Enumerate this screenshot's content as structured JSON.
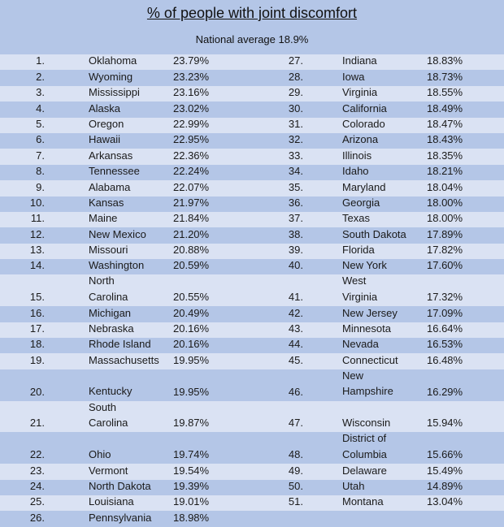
{
  "title": "% of people with joint discomfort",
  "subtitle": "National average 18.9%",
  "colors": {
    "header_bg": "#b4c6e7",
    "row_light": "#dae2f3",
    "row_dark": "#b4c6e7"
  },
  "rows": [
    {
      "left": {
        "rank": "1.",
        "state": "Oklahoma",
        "pct": "23.79%"
      },
      "right": {
        "rank": "27.",
        "state": "Indiana",
        "pct": "18.83%"
      }
    },
    {
      "left": {
        "rank": "2.",
        "state": "Wyoming",
        "pct": "23.23%"
      },
      "right": {
        "rank": "28.",
        "state": "Iowa",
        "pct": "18.73%"
      }
    },
    {
      "left": {
        "rank": "3.",
        "state": "Mississippi",
        "pct": "23.16%"
      },
      "right": {
        "rank": "29.",
        "state": "Virginia",
        "pct": "18.55%"
      }
    },
    {
      "left": {
        "rank": "4.",
        "state": "Alaska",
        "pct": "23.02%"
      },
      "right": {
        "rank": "30.",
        "state": "California",
        "pct": "18.49%"
      }
    },
    {
      "left": {
        "rank": "5.",
        "state": "Oregon",
        "pct": "22.99%"
      },
      "right": {
        "rank": "31.",
        "state": "Colorado",
        "pct": "18.47%"
      }
    },
    {
      "left": {
        "rank": "6.",
        "state": "Hawaii",
        "pct": "22.95%"
      },
      "right": {
        "rank": "32.",
        "state": "Arizona",
        "pct": "18.43%"
      }
    },
    {
      "left": {
        "rank": "7.",
        "state": "Arkansas",
        "pct": "22.36%"
      },
      "right": {
        "rank": "33.",
        "state": "Illinois",
        "pct": "18.35%"
      }
    },
    {
      "left": {
        "rank": "8.",
        "state": "Tennessee",
        "pct": "22.24%"
      },
      "right": {
        "rank": "34.",
        "state": "Idaho",
        "pct": "18.21%"
      }
    },
    {
      "left": {
        "rank": "9.",
        "state": "Alabama",
        "pct": "22.07%"
      },
      "right": {
        "rank": "35.",
        "state": "Maryland",
        "pct": "18.04%"
      }
    },
    {
      "left": {
        "rank": "10.",
        "state": "Kansas",
        "pct": "21.97%"
      },
      "right": {
        "rank": "36.",
        "state": "Georgia",
        "pct": "18.00%"
      }
    },
    {
      "left": {
        "rank": "11.",
        "state": "Maine",
        "pct": "21.84%"
      },
      "right": {
        "rank": "37.",
        "state": "Texas",
        "pct": "18.00%"
      }
    },
    {
      "left": {
        "rank": "12.",
        "state": "New Mexico",
        "pct": "21.20%"
      },
      "right": {
        "rank": "38.",
        "state": "South Dakota",
        "pct": "17.89%"
      }
    },
    {
      "left": {
        "rank": "13.",
        "state": "Missouri",
        "pct": "20.88%"
      },
      "right": {
        "rank": "39.",
        "state": "Florida",
        "pct": "17.82%"
      }
    },
    {
      "left": {
        "rank": "14.",
        "state": "Washington",
        "pct": "20.59%"
      },
      "right": {
        "rank": "40.",
        "state": "New York",
        "pct": "17.60%"
      }
    },
    {
      "left": {
        "rank": "15.",
        "state": "North Carolina",
        "pct": "20.55%"
      },
      "right": {
        "rank": "41.",
        "state": "West Virginia",
        "pct": "17.32%"
      }
    },
    {
      "left": {
        "rank": "16.",
        "state": "Michigan",
        "pct": "20.49%"
      },
      "right": {
        "rank": "42.",
        "state": "New Jersey",
        "pct": "17.09%"
      }
    },
    {
      "left": {
        "rank": "17.",
        "state": "Nebraska",
        "pct": "20.16%"
      },
      "right": {
        "rank": "43.",
        "state": "Minnesota",
        "pct": "16.64%"
      }
    },
    {
      "left": {
        "rank": "18.",
        "state": "Rhode Island",
        "pct": "20.16%"
      },
      "right": {
        "rank": "44.",
        "state": "Nevada",
        "pct": "16.53%"
      }
    },
    {
      "left": {
        "rank": "19.",
        "state": "Massachusetts",
        "pct": "19.95%"
      },
      "right": {
        "rank": "45.",
        "state": "Connecticut",
        "pct": "16.48%"
      }
    },
    {
      "left": {
        "rank": "20.",
        "state": "Kentucky",
        "pct": "19.95%"
      },
      "right": {
        "rank": "46.",
        "state": "New Hampshire",
        "pct": "16.29%"
      }
    },
    {
      "left": {
        "rank": "21.",
        "state": "South Carolina",
        "pct": "19.87%"
      },
      "right": {
        "rank": "47.",
        "state": "Wisconsin",
        "pct": "15.94%"
      }
    },
    {
      "left": {
        "rank": "22.",
        "state": "Ohio",
        "pct": "19.74%"
      },
      "right": {
        "rank": "48.",
        "state": "District of Columbia",
        "pct": "15.66%"
      }
    },
    {
      "left": {
        "rank": "23.",
        "state": "Vermont",
        "pct": "19.54%"
      },
      "right": {
        "rank": "49.",
        "state": "Delaware",
        "pct": "15.49%"
      }
    },
    {
      "left": {
        "rank": "24.",
        "state": "North Dakota",
        "pct": "19.39%"
      },
      "right": {
        "rank": "50.",
        "state": "Utah",
        "pct": "14.89%"
      }
    },
    {
      "left": {
        "rank": "25.",
        "state": "Louisiana",
        "pct": "19.01%"
      },
      "right": {
        "rank": "51.",
        "state": "Montana",
        "pct": "13.04%"
      }
    },
    {
      "left": {
        "rank": "26.",
        "state": "Pennsylvania",
        "pct": "18.98%"
      },
      "right": null
    }
  ]
}
